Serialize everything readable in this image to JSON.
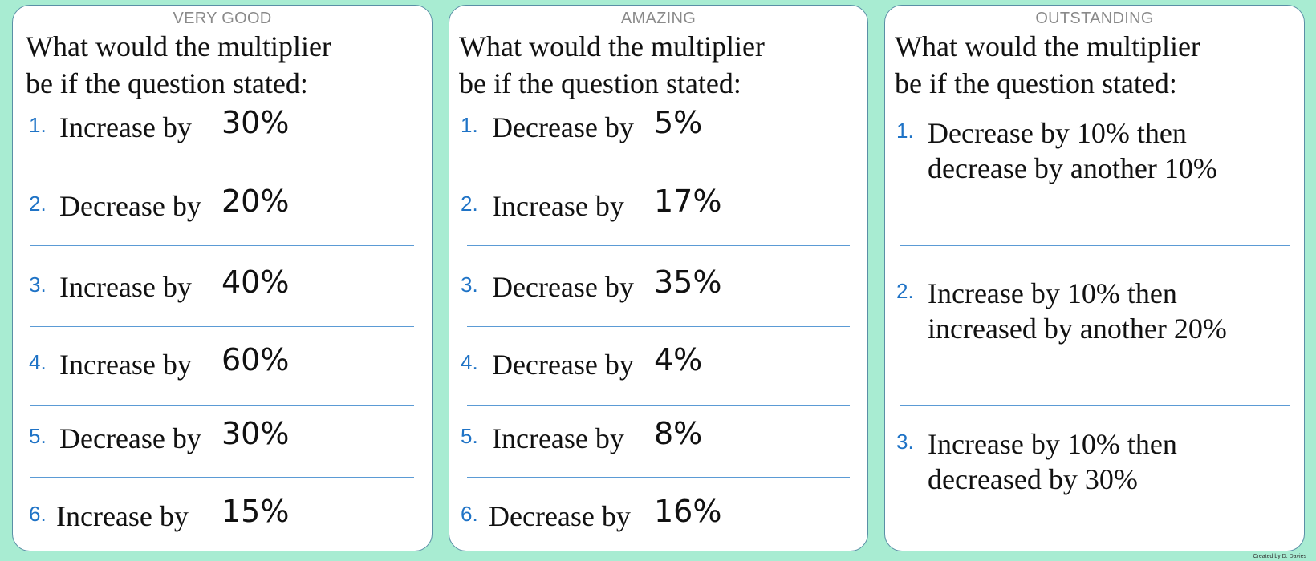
{
  "cards": [
    {
      "level": "VERY GOOD",
      "heading_line1": "What would the multiplier",
      "heading_line2": "be if the question stated:",
      "questions": [
        {
          "num": "1.",
          "text": "Increase by",
          "value": "30%"
        },
        {
          "num": "2.",
          "text": "Decrease by",
          "value": "20%"
        },
        {
          "num": "3.",
          "text": "Increase by",
          "value": "40%"
        },
        {
          "num": "4.",
          "text": "Increase by",
          "value": "60%"
        },
        {
          "num": "5.",
          "text": "Decrease by",
          "value": "30%"
        },
        {
          "num": "6.",
          "text": "Increase by",
          "value": "15%"
        }
      ]
    },
    {
      "level": "AMAZING",
      "heading_line1": "What would the multiplier",
      "heading_line2": "be if the question stated:",
      "questions": [
        {
          "num": "1.",
          "text": "Decrease by",
          "value": "5%"
        },
        {
          "num": "2.",
          "text": "Increase by",
          "value": "17%"
        },
        {
          "num": "3.",
          "text": "Decrease by",
          "value": "35%"
        },
        {
          "num": "4.",
          "text": "Decrease by",
          "value": "4%"
        },
        {
          "num": "5.",
          "text": "Increase by",
          "value": "8%"
        },
        {
          "num": "6.",
          "text": "Decrease by",
          "value": "16%"
        }
      ]
    },
    {
      "level": "OUTSTANDING",
      "heading_line1": "What would the multiplier",
      "heading_line2": "be if the question stated:",
      "questions": [
        {
          "num": "1.",
          "line1": "Decrease by 10% then",
          "line2": "decrease by another 10%"
        },
        {
          "num": "2.",
          "line1": "Increase by 10% then",
          "line2": "increased by another 20%"
        },
        {
          "num": "3.",
          "line1": "Increase by 10% then",
          "line2": "decreased by 30%"
        }
      ]
    }
  ],
  "credit": "Created by D. Davies"
}
